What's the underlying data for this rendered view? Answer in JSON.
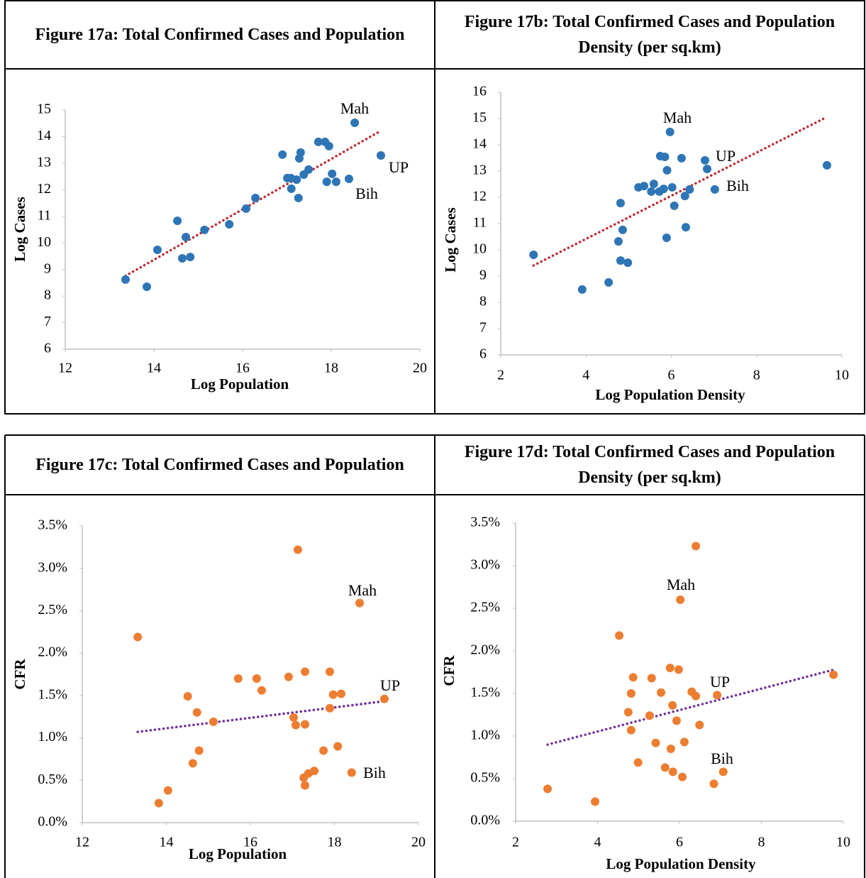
{
  "chart_data": [
    {
      "type": "scatter",
      "title": "Figure 17a: Total Confirmed Cases and Population",
      "x_label": "Log Population",
      "y_label": "Log Cases",
      "x": [
        13.36,
        13.84,
        14.08,
        14.53,
        14.64,
        14.72,
        14.82,
        15.14,
        15.7,
        16.08,
        16.29,
        16.9,
        17.01,
        17.09,
        17.1,
        17.22,
        17.26,
        17.28,
        17.31,
        17.38,
        17.49,
        17.71,
        17.86,
        17.9,
        17.95,
        18.02,
        18.11,
        18.4,
        18.53,
        19.12
      ],
      "series": [
        {
          "color": "#2e75b6",
          "values": [
            8.62,
            8.35,
            9.74,
            10.83,
            9.42,
            10.22,
            9.47,
            10.49,
            10.7,
            11.29,
            11.69,
            13.32,
            12.44,
            12.44,
            12.04,
            12.38,
            11.69,
            13.18,
            13.4,
            12.57,
            12.76,
            13.8,
            13.8,
            12.3,
            13.64,
            12.6,
            12.3,
            12.41,
            14.52,
            13.29
          ]
        }
      ],
      "xlim": [
        12,
        20
      ],
      "xticks": [
        12,
        14,
        16,
        18,
        20
      ],
      "ylim": [
        6,
        15
      ],
      "yticks": [
        6,
        7,
        8,
        9,
        10,
        11,
        12,
        13,
        14,
        15
      ],
      "annotations": [
        "Mah",
        "UP",
        "Bih"
      ],
      "trendline": {
        "color": "#c0282d"
      }
    },
    {
      "type": "scatter",
      "title": "Figure 17b: Total Confirmed Cases and Population Density (per sq.km)",
      "x_label": "Log Population Density",
      "y_label": "Log Cases",
      "x": [
        2.77,
        3.91,
        4.53,
        4.76,
        4.81,
        4.81,
        4.86,
        4.98,
        5.23,
        5.36,
        5.53,
        5.59,
        5.72,
        5.74,
        5.82,
        5.85,
        5.89,
        5.9,
        5.97,
        6.02,
        6.07,
        6.24,
        6.32,
        6.34,
        6.43,
        6.79,
        6.84,
        7.02,
        9.65
      ],
      "series": [
        {
          "color": "#2e75b6",
          "values": [
            9.81,
            8.49,
            8.76,
            10.32,
            11.78,
            9.59,
            10.76,
            9.51,
            12.38,
            12.43,
            12.22,
            12.51,
            12.22,
            13.57,
            12.32,
            13.54,
            10.46,
            13.03,
            14.49,
            12.38,
            11.68,
            13.49,
            12.05,
            10.86,
            12.3,
            13.41,
            13.08,
            12.3,
            13.22
          ]
        }
      ],
      "xlim": [
        2,
        10
      ],
      "xticks": [
        2,
        4,
        6,
        8,
        10
      ],
      "ylim": [
        6,
        16
      ],
      "yticks": [
        6,
        7,
        8,
        9,
        10,
        11,
        12,
        13,
        14,
        15,
        16
      ],
      "annotations": [
        "Mah",
        "UP",
        "Bih"
      ],
      "trendline": {
        "color": "#c0282d"
      }
    },
    {
      "type": "scatter",
      "title": "Figure 17c: Total Confirmed Cases and Population",
      "x_label": "Log Population",
      "y_label": "CFR",
      "x": [
        13.32,
        13.82,
        14.04,
        14.51,
        14.63,
        14.73,
        14.78,
        15.12,
        15.71,
        16.15,
        16.27,
        16.91,
        17.03,
        17.08,
        17.13,
        17.27,
        17.3,
        17.3,
        17.3,
        17.38,
        17.52,
        17.74,
        17.89,
        17.89,
        17.97,
        18.08,
        18.16,
        18.41,
        18.6,
        19.19
      ],
      "series": [
        {
          "color": "#ed7d31",
          "values": [
            2.19,
            0.23,
            0.38,
            1.49,
            0.7,
            1.3,
            0.85,
            1.19,
            1.7,
            1.7,
            1.56,
            1.72,
            1.24,
            1.15,
            3.22,
            0.53,
            0.44,
            1.16,
            1.78,
            0.58,
            0.61,
            0.85,
            1.78,
            1.35,
            1.51,
            0.9,
            1.52,
            0.59,
            2.59,
            1.46
          ]
        }
      ],
      "xlim": [
        12,
        20
      ],
      "xticks": [
        12,
        14,
        16,
        18,
        20
      ],
      "ylim": [
        0,
        3.5
      ],
      "yticks": [
        {
          "value": 0,
          "label": "0.0%"
        },
        {
          "value": 0.5,
          "label": "0.5%"
        },
        {
          "value": 1,
          "label": "1.0%"
        },
        {
          "value": 1.5,
          "label": "1.5%"
        },
        {
          "value": 2,
          "label": "2.0%"
        },
        {
          "value": 2.5,
          "label": "2.5%"
        },
        {
          "value": 3,
          "label": "3.0%"
        },
        {
          "value": 3.5,
          "label": "3.5%"
        }
      ],
      "annotations": [
        "Mah",
        "UP",
        "Bih"
      ],
      "trendline": {
        "color": "#7030a0"
      }
    },
    {
      "type": "scatter",
      "title": "Figure 17d: Total Confirmed Cases and Population Density (per sq.km)",
      "x_label": "Log Population Density",
      "y_label": "CFR",
      "x": [
        2.78,
        3.94,
        4.53,
        4.75,
        4.82,
        4.82,
        4.87,
        4.99,
        5.27,
        5.32,
        5.42,
        5.55,
        5.65,
        5.77,
        5.79,
        5.83,
        5.84,
        5.93,
        5.98,
        6.02,
        6.07,
        6.12,
        6.3,
        6.4,
        6.4,
        6.49,
        6.84,
        6.92,
        7.07,
        9.76
      ],
      "series": [
        {
          "color": "#ed7d31",
          "values": [
            0.38,
            0.23,
            2.18,
            1.28,
            1.5,
            1.07,
            1.69,
            0.69,
            1.24,
            1.68,
            0.92,
            1.51,
            0.63,
            1.8,
            0.85,
            1.36,
            0.58,
            1.18,
            1.78,
            2.6,
            0.52,
            0.93,
            1.52,
            1.47,
            3.23,
            1.13,
            0.44,
            1.48,
            0.58,
            1.72
          ]
        }
      ],
      "xlim": [
        2,
        10
      ],
      "xticks": [
        2,
        4,
        6,
        8,
        10
      ],
      "ylim": [
        0,
        3.5
      ],
      "yticks": [
        {
          "value": 0,
          "label": "0.0%"
        },
        {
          "value": 0.5,
          "label": "0.5%"
        },
        {
          "value": 1,
          "label": "1.0%"
        },
        {
          "value": 1.5,
          "label": "1.5%"
        },
        {
          "value": 2,
          "label": "2.0%"
        },
        {
          "value": 2.5,
          "label": "2.5%"
        },
        {
          "value": 3,
          "label": "3.0%"
        },
        {
          "value": 3.5,
          "label": "3.5%"
        }
      ],
      "annotations": [
        "Mah",
        "UP",
        "Bih"
      ],
      "trendline": {
        "color": "#7030a0"
      }
    }
  ]
}
